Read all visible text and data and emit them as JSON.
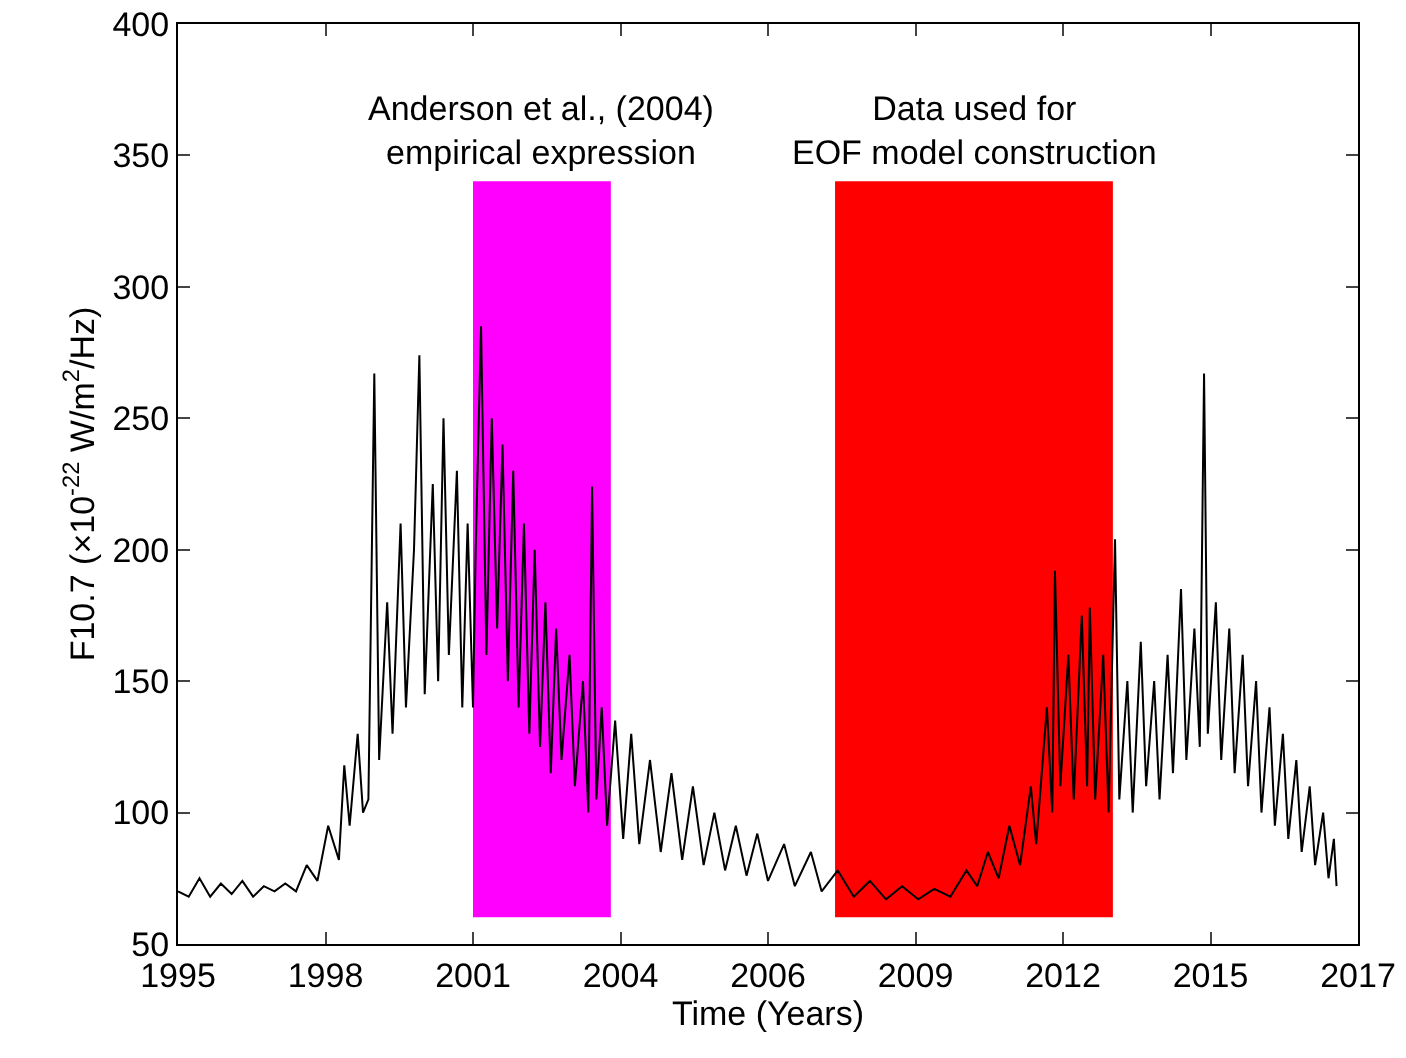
{
  "chart_data": {
    "type": "line",
    "xlabel": "Time (Years)",
    "ylabel": "F10.7 (×10$^{-22}$ W/m$^{2}$/Hz)",
    "series": [
      {
        "color": "#000000",
        "x": [
          1995.35,
          1995.55,
          1995.75,
          1995.95,
          1996.15,
          1996.35,
          1996.55,
          1996.75,
          1996.95,
          1997.15,
          1997.35,
          1997.55,
          1997.75,
          1997.95,
          1998.15,
          1998.35,
          1998.45,
          1998.55,
          1998.7,
          1998.8,
          1998.9,
          1999.01,
          1999.1,
          1999.25,
          1999.35,
          1999.5,
          1999.6,
          1999.75,
          1999.85,
          1999.95,
          2000.1,
          2000.2,
          2000.3,
          2000.4,
          2000.55,
          2000.65,
          2000.75,
          2000.85,
          2000.9,
          2001.0,
          2001.1,
          2001.2,
          2001.3,
          2001.4,
          2001.5,
          2001.6,
          2001.7,
          2001.8,
          2001.9,
          2002.0,
          2002.1,
          2002.2,
          2002.3,
          2002.4,
          2002.5,
          2002.65,
          2002.75,
          2002.9,
          2003.0,
          2003.07,
          2003.15,
          2003.25,
          2003.35,
          2003.5,
          2003.65,
          2003.8,
          2003.95,
          2004.15,
          2004.35,
          2004.55,
          2004.75,
          2004.95,
          2005.15,
          2005.35,
          2005.55,
          2005.75,
          2005.95,
          2006.15,
          2006.35,
          2006.65,
          2006.85,
          2007.15,
          2007.35,
          2007.65,
          2007.95,
          2008.25,
          2008.55,
          2008.85,
          2009.15,
          2009.45,
          2009.75,
          2010.05,
          2010.25,
          2010.45,
          2010.65,
          2010.85,
          2011.05,
          2011.25,
          2011.35,
          2011.55,
          2011.65,
          2011.7,
          2011.8,
          2011.95,
          2012.05,
          2012.2,
          2012.3,
          2012.35,
          2012.45,
          2012.6,
          2012.7,
          2012.82,
          2012.9,
          2013.05,
          2013.15,
          2013.3,
          2013.4,
          2013.55,
          2013.65,
          2013.8,
          2013.9,
          2014.05,
          2014.15,
          2014.3,
          2014.4,
          2014.48,
          2014.55,
          2014.7,
          2014.8,
          2014.95,
          2015.05,
          2015.2,
          2015.3,
          2015.45,
          2015.55,
          2015.7,
          2015.8,
          2015.95,
          2016.05,
          2016.2,
          2016.3,
          2016.45,
          2016.55,
          2016.7,
          2016.8,
          2016.9,
          2016.95
        ],
        "values": [
          70,
          68,
          75,
          68,
          73,
          69,
          74,
          68,
          72,
          70,
          73,
          70,
          80,
          74,
          95,
          82,
          118,
          95,
          130,
          100,
          105,
          267,
          120,
          180,
          130,
          210,
          140,
          200,
          274,
          145,
          225,
          150,
          250,
          160,
          230,
          140,
          210,
          140,
          200,
          285,
          160,
          250,
          170,
          240,
          150,
          230,
          140,
          210,
          130,
          200,
          125,
          180,
          115,
          170,
          120,
          160,
          110,
          150,
          100,
          224,
          105,
          140,
          95,
          135,
          90,
          130,
          88,
          120,
          85,
          115,
          82,
          110,
          80,
          100,
          78,
          95,
          76,
          92,
          74,
          88,
          72,
          85,
          70,
          78,
          68,
          74,
          67,
          72,
          67,
          71,
          68,
          78,
          72,
          85,
          75,
          95,
          80,
          110,
          88,
          140,
          100,
          192,
          110,
          160,
          105,
          175,
          110,
          178,
          105,
          160,
          100,
          204,
          105,
          150,
          100,
          165,
          110,
          150,
          105,
          160,
          115,
          185,
          120,
          170,
          125,
          267,
          130,
          180,
          120,
          170,
          115,
          160,
          110,
          150,
          100,
          140,
          95,
          130,
          90,
          120,
          85,
          110,
          80,
          100,
          75,
          90,
          72
        ]
      }
    ],
    "xlim": [
      1995.35,
      2017.35
    ],
    "xticks": [
      {
        "value": 1995.35,
        "label": "1995"
      },
      {
        "value": 1998.1,
        "label": "1998"
      },
      {
        "value": 2000.85,
        "label": "2001"
      },
      {
        "value": 2003.6,
        "label": "2004"
      },
      {
        "value": 2006.35,
        "label": "2006"
      },
      {
        "value": 2009.1,
        "label": "2009"
      },
      {
        "value": 2011.85,
        "label": "2012"
      },
      {
        "value": 2014.6,
        "label": "2015"
      },
      {
        "value": 2017.35,
        "label": "2017"
      }
    ],
    "ylim": [
      50,
      400
    ],
    "yticks": [
      50,
      100,
      150,
      200,
      250,
      300,
      350,
      400
    ],
    "bands": [
      {
        "axis": "x",
        "from": 2000.85,
        "to": 2003.42,
        "label": "Anderson et al., (2004)\nempirical expression",
        "color": "#ff00ff"
      },
      {
        "axis": "x",
        "from": 2007.6,
        "to": 2012.78,
        "label": "Data used for\nEOF model construction",
        "color": "#ff0000"
      }
    ],
    "grid": false,
    "line_style": "solid",
    "marker": "none"
  }
}
